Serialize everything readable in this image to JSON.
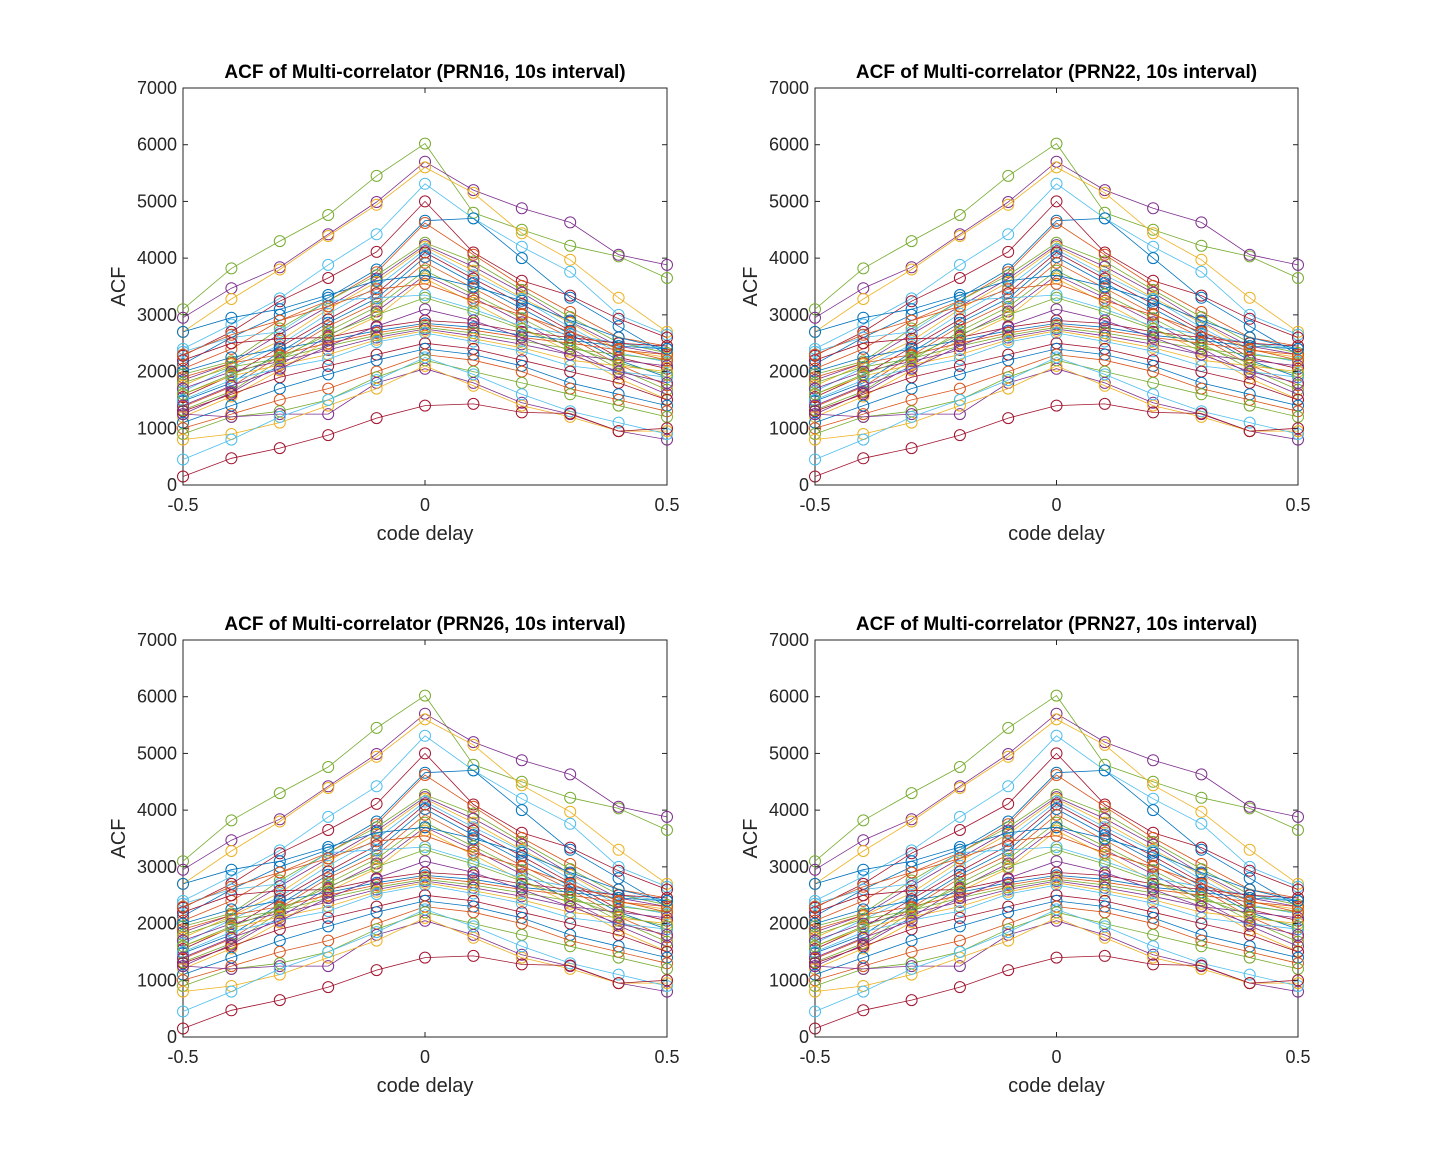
{
  "figure": {
    "panels": [
      {
        "title": "ACF of Multi-correlator (PRN16, 10s interval)",
        "xlabel": "code delay",
        "ylabel": "ACF"
      },
      {
        "title": "ACF of Multi-correlator (PRN22, 10s interval)",
        "xlabel": "code delay",
        "ylabel": "ACF"
      },
      {
        "title": "ACF of Multi-correlator (PRN26, 10s interval)",
        "xlabel": "code delay",
        "ylabel": "ACF"
      },
      {
        "title": "ACF of Multi-correlator (PRN27, 10s interval)",
        "xlabel": "code delay",
        "ylabel": "ACF"
      }
    ]
  },
  "chart_data": [
    {
      "type": "line",
      "title": "ACF of Multi-correlator (PRN16, 10s interval)",
      "xlabel": "code delay",
      "ylabel": "ACF",
      "xlim": [
        -0.5,
        0.5
      ],
      "ylim": [
        0,
        7000
      ],
      "x": [
        -0.5,
        -0.4,
        -0.3,
        -0.2,
        -0.1,
        0,
        0.1,
        0.2,
        0.3,
        0.4,
        0.5
      ],
      "xticks": [
        "-0.5",
        "0",
        "0.5"
      ],
      "yticks": [
        "0",
        "1000",
        "2000",
        "3000",
        "4000",
        "5000",
        "6000",
        "7000"
      ],
      "marker": "circle",
      "grid": false,
      "legend": false
    },
    {
      "type": "line",
      "title": "ACF of Multi-correlator (PRN22, 10s interval)",
      "xlabel": "code delay",
      "ylabel": "ACF",
      "xlim": [
        -0.5,
        0.5
      ],
      "ylim": [
        0,
        7000
      ],
      "x": [
        -0.5,
        -0.4,
        -0.3,
        -0.2,
        -0.1,
        0,
        0.1,
        0.2,
        0.3,
        0.4,
        0.5
      ],
      "xticks": [
        "-0.5",
        "0",
        "0.5"
      ],
      "yticks": [
        "0",
        "1000",
        "2000",
        "3000",
        "4000",
        "5000",
        "6000",
        "7000"
      ],
      "marker": "circle",
      "grid": false,
      "legend": false
    },
    {
      "type": "line",
      "title": "ACF of Multi-correlator (PRN26, 10s interval)",
      "xlabel": "code delay",
      "ylabel": "ACF",
      "xlim": [
        -0.5,
        0.5
      ],
      "ylim": [
        0,
        7000
      ],
      "x": [
        -0.5,
        -0.4,
        -0.3,
        -0.2,
        -0.1,
        0,
        0.1,
        0.2,
        0.3,
        0.4,
        0.5
      ],
      "xticks": [
        "-0.5",
        "0",
        "0.5"
      ],
      "yticks": [
        "0",
        "1000",
        "2000",
        "3000",
        "4000",
        "5000",
        "6000",
        "7000"
      ],
      "marker": "circle",
      "grid": false,
      "legend": false
    },
    {
      "type": "line",
      "title": "ACF of Multi-correlator (PRN27, 10s interval)",
      "xlabel": "code delay",
      "ylabel": "ACF",
      "xlim": [
        -0.5,
        0.5
      ],
      "ylim": [
        0,
        7000
      ],
      "x": [
        -0.5,
        -0.4,
        -0.3,
        -0.2,
        -0.1,
        0,
        0.1,
        0.2,
        0.3,
        0.4,
        0.5
      ],
      "xticks": [
        "-0.5",
        "0",
        "0.5"
      ],
      "yticks": [
        "0",
        "1000",
        "2000",
        "3000",
        "4000",
        "5000",
        "6000",
        "7000"
      ],
      "marker": "circle",
      "grid": false,
      "legend": false
    }
  ],
  "series_values": [
    [
      3100,
      3820,
      4300,
      4760,
      5450,
      6020,
      4800,
      4500,
      4220,
      4030,
      3650
    ],
    [
      2950,
      3470,
      3840,
      4420,
      4990,
      5700,
      5200,
      4880,
      4630,
      4060,
      3880
    ],
    [
      2700,
      3280,
      3800,
      4390,
      4940,
      5600,
      5150,
      4440,
      3970,
      3300,
      2700
    ],
    [
      2400,
      2830,
      3290,
      3880,
      4420,
      5310,
      4700,
      4200,
      3760,
      3000,
      2650
    ],
    [
      2280,
      2700,
      3240,
      3650,
      4110,
      5000,
      4100,
      3600,
      3340,
      2930,
      2600
    ],
    [
      2130,
      2600,
      3000,
      3300,
      3800,
      4660,
      4700,
      4000,
      3300,
      2800,
      2300
    ],
    [
      2050,
      2400,
      2900,
      3250,
      3750,
      4620,
      4060,
      3510,
      3050,
      2600,
      2450
    ],
    [
      1950,
      2180,
      2760,
      3250,
      3700,
      4270,
      3940,
      3440,
      2960,
      2510,
      2330
    ],
    [
      1850,
      2150,
      2660,
      3150,
      3640,
      4230,
      3850,
      3390,
      2880,
      2450,
      2300
    ],
    [
      1750,
      2130,
      2540,
      3100,
      3580,
      4200,
      3780,
      3300,
      2860,
      2380,
      2250
    ],
    [
      1650,
      2070,
      2470,
      3020,
      3490,
      4150,
      3700,
      3280,
      2780,
      2330,
      2170
    ],
    [
      1550,
      1930,
      2430,
      2920,
      3380,
      4100,
      3640,
      3190,
      2720,
      2250,
      2050
    ],
    [
      1480,
      1800,
      2340,
      2860,
      3290,
      4020,
      3560,
      3110,
      2660,
      2200,
      1900
    ],
    [
      1380,
      1730,
      2280,
      2800,
      3210,
      3920,
      3470,
      3020,
      2600,
      2120,
      1760
    ],
    [
      1320,
      1650,
      2200,
      2710,
      3140,
      3780,
      3360,
      2940,
      2500,
      2050,
      1680
    ],
    [
      1250,
      1630,
      2110,
      2630,
      3060,
      3700,
      3300,
      2870,
      2410,
      1960,
      1600
    ],
    [
      1200,
      1560,
      2020,
      2570,
      2970,
      3640,
      3210,
      2760,
      2350,
      1880,
      1510
    ],
    [
      2350,
      2600,
      2700,
      3250,
      3300,
      3350,
      3100,
      2800,
      2650,
      2500,
      2400
    ],
    [
      2200,
      2500,
      2580,
      2600,
      2780,
      2900,
      2850,
      2700,
      2600,
      2500,
      2450
    ],
    [
      2000,
      2250,
      2400,
      2550,
      2720,
      2850,
      2780,
      2640,
      2550,
      2450,
      2400
    ],
    [
      1900,
      2150,
      2300,
      2500,
      2680,
      2820,
      2730,
      2600,
      2500,
      2380,
      2300
    ],
    [
      1800,
      2080,
      2230,
      2450,
      2640,
      2780,
      2680,
      2540,
      2400,
      2300,
      2200
    ],
    [
      1700,
      2000,
      2180,
      2380,
      2600,
      2750,
      2630,
      2480,
      2300,
      2200,
      2100
    ],
    [
      1600,
      1920,
      2120,
      2300,
      2560,
      2720,
      2580,
      2420,
      2200,
      2100,
      2000
    ],
    [
      1500,
      1850,
      2060,
      2220,
      2520,
      2680,
      2530,
      2360,
      2100,
      2000,
      1900
    ],
    [
      1300,
      1600,
      1900,
      2100,
      2300,
      2500,
      2400,
      2200,
      2000,
      1800,
      1500
    ],
    [
      1100,
      1400,
      1700,
      1950,
      2200,
      2400,
      2300,
      2100,
      1800,
      1600,
      1400
    ],
    [
      1000,
      1250,
      1500,
      1700,
      2000,
      2300,
      2200,
      2000,
      1700,
      1500,
      1300
    ],
    [
      900,
      1200,
      1300,
      1500,
      1900,
      2200,
      2000,
      1800,
      1600,
      1400,
      1200
    ],
    [
      1250,
      1200,
      1250,
      1250,
      1800,
      2050,
      1800,
      1450,
      1250,
      950,
      800
    ],
    [
      800,
      900,
      1100,
      1400,
      1700,
      2100,
      1750,
      1400,
      1200,
      950,
      950
    ],
    [
      450,
      800,
      1200,
      1500,
      1850,
      2250,
      1950,
      1600,
      1300,
      1100,
      900
    ],
    [
      150,
      470,
      650,
      880,
      1180,
      1400,
      1430,
      1280,
      1260,
      950,
      1000
    ],
    [
      2700,
      2950,
      3100,
      3350,
      3600,
      3700,
      3500,
      3250,
      2900,
      2600,
      2400
    ],
    [
      2300,
      2650,
      2900,
      3150,
      3450,
      3550,
      3250,
      3000,
      2700,
      2400,
      2200
    ],
    [
      1600,
      1950,
      2250,
      2650,
      3000,
      3300,
      3050,
      2750,
      2450,
      2150,
      1950
    ],
    [
      1400,
      1750,
      2050,
      2450,
      2800,
      3100,
      2900,
      2600,
      2300,
      2000,
      1800
    ]
  ],
  "series_colors": [
    "#77ac30",
    "#7e2f8e",
    "#edb120",
    "#4dbeee",
    "#a2142f",
    "#0072bd",
    "#d95319"
  ]
}
